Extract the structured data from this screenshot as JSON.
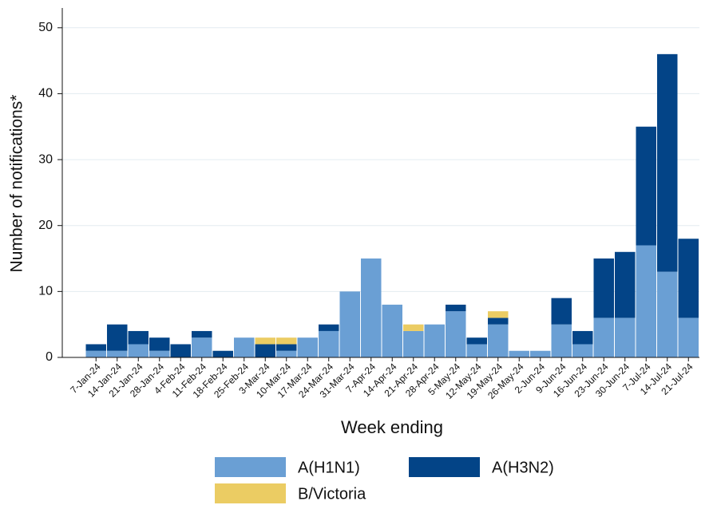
{
  "chart_data": {
    "type": "stacked_bar",
    "y_label": "Number of notifications*",
    "x_label": "Week ending",
    "categories": [
      "7-Jan-24",
      "14-Jan-24",
      "21-Jan-24",
      "28-Jan-24",
      "4-Feb-24",
      "11-Feb-24",
      "18-Feb-24",
      "25-Feb-24",
      "3-Mar-24",
      "10-Mar-24",
      "17-Mar-24",
      "24-Mar-24",
      "31-Mar-24",
      "7-Apr-24",
      "14-Apr-24",
      "21-Apr-24",
      "28-Apr-24",
      "5-May-24",
      "12-May-24",
      "19-May-24",
      "26-May-24",
      "2-Jun-24",
      "9-Jun-24",
      "16-Jun-24",
      "23-Jun-24",
      "30-Jun-24",
      "7-Jul-24",
      "14-Jul-24",
      "21-Jul-24"
    ],
    "series": [
      {
        "name": "A(H1N1)",
        "color": "#6a9fd4",
        "values": [
          1,
          1,
          2,
          1,
          0,
          3,
          0,
          3,
          0,
          1,
          3,
          4,
          10,
          15,
          8,
          4,
          5,
          7,
          2,
          5,
          1,
          1,
          5,
          2,
          6,
          6,
          17,
          13,
          6
        ]
      },
      {
        "name": "A(H3N2)",
        "color": "#034487",
        "values": [
          1,
          4,
          2,
          2,
          2,
          1,
          1,
          0,
          2,
          1,
          0,
          1,
          0,
          0,
          0,
          0,
          0,
          1,
          1,
          1,
          0,
          0,
          4,
          2,
          9,
          10,
          18,
          33,
          12
        ]
      },
      {
        "name": "B/Victoria",
        "color": "#ebcc63",
        "values": [
          0,
          0,
          0,
          0,
          0,
          0,
          0,
          0,
          1,
          1,
          0,
          0,
          0,
          0,
          0,
          1,
          0,
          0,
          0,
          1,
          0,
          0,
          0,
          0,
          0,
          0,
          0,
          0,
          0
        ]
      }
    ],
    "ylim": [
      0,
      53
    ],
    "yticks": [
      0,
      10,
      20,
      30,
      40,
      50
    ],
    "grid": true
  }
}
